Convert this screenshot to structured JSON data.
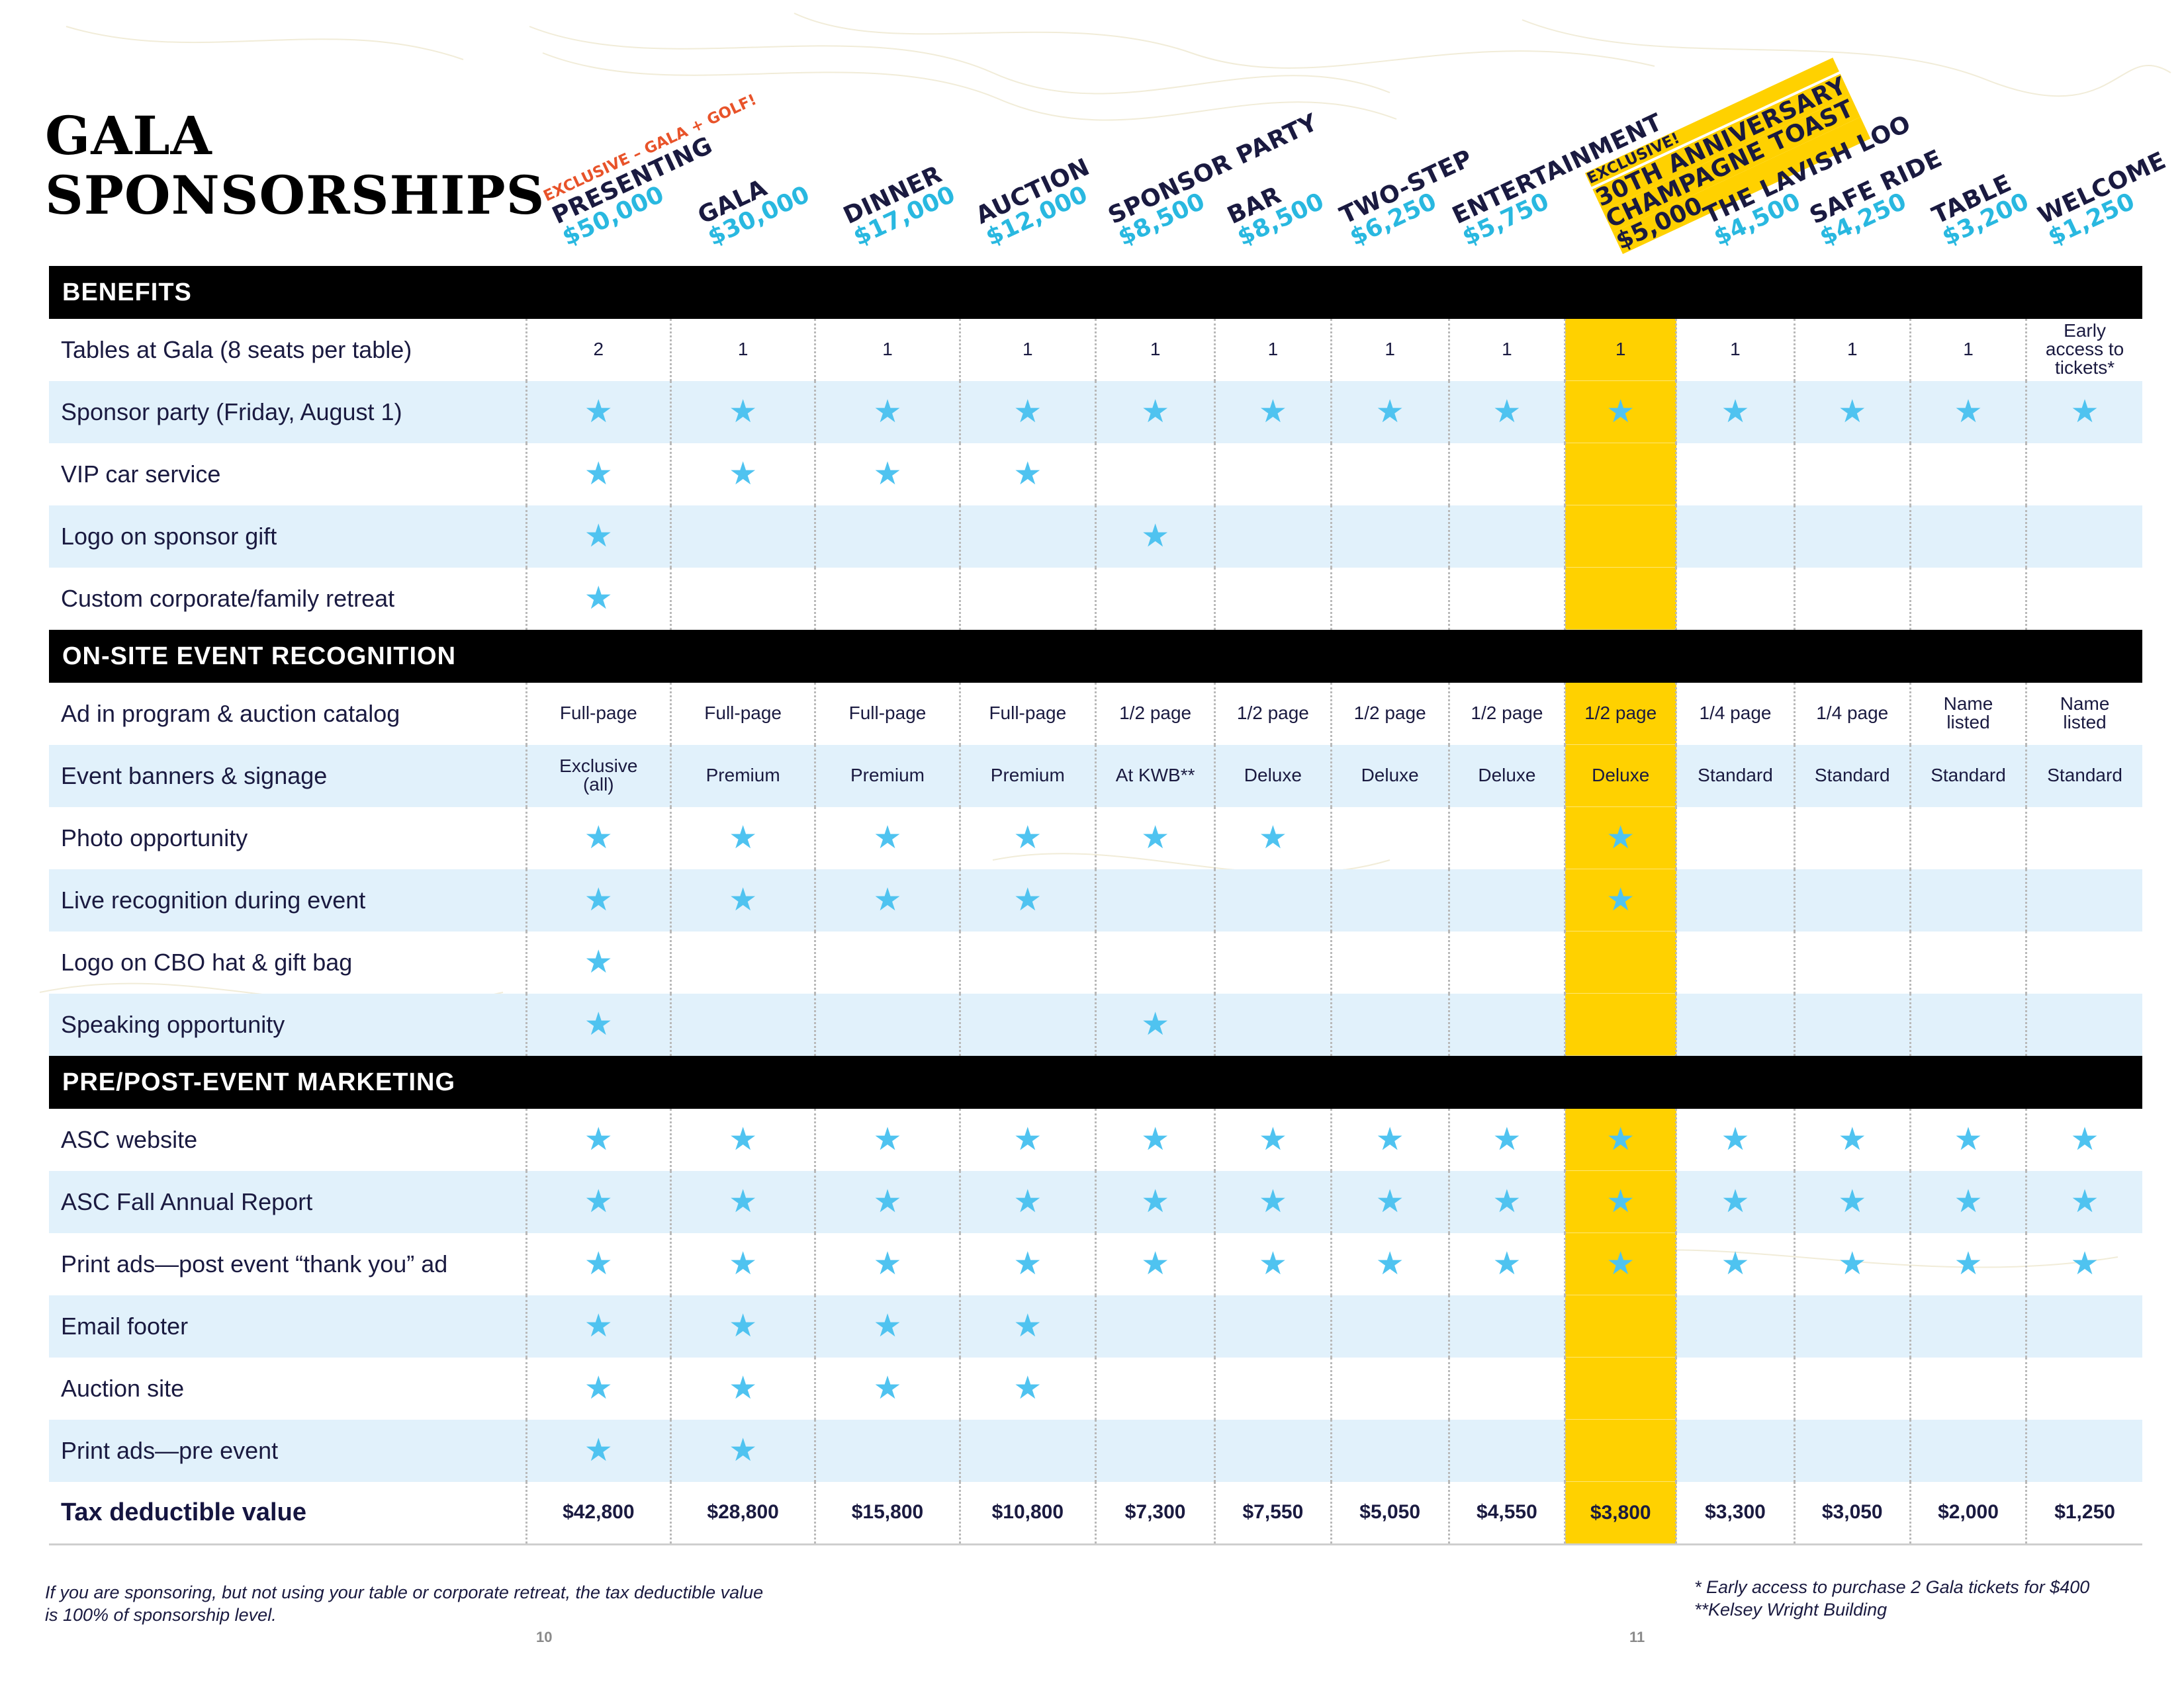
{
  "title": [
    "GALA",
    "SPONSORSHIPS"
  ],
  "columns": [
    {
      "note": "EXCLUSIVE – GALA + GOLF!",
      "name": "PRESENTING",
      "price": "$50,000"
    },
    {
      "name": "GALA",
      "price": "$30,000"
    },
    {
      "name": "DINNER",
      "price": "$17,000"
    },
    {
      "name": "AUCTION",
      "price": "$12,000"
    },
    {
      "name": "SPONSOR PARTY",
      "price": "$8,500"
    },
    {
      "name": "BAR",
      "price": "$8,500"
    },
    {
      "name": "TWO-STEP",
      "price": "$6,250"
    },
    {
      "name": "ENTERTAINMENT",
      "price": "$5,750"
    },
    {
      "note": "EXCLUSIVE!",
      "name": "30TH ANNIVERSARY",
      "name2": "CHAMPAGNE TOAST",
      "price": "$5,000",
      "highlight": true
    },
    {
      "name": "THE LAVISH LOO",
      "price": "$4,500"
    },
    {
      "name": "SAFE RIDE",
      "price": "$4,250"
    },
    {
      "name": "TABLE",
      "price": "$3,200"
    },
    {
      "name": "WELCOME",
      "price": "$1,250"
    }
  ],
  "sections": [
    {
      "title": "BENEFITS",
      "rows": [
        {
          "label": "Tables at Gala (8 seats per table)",
          "cells": [
            "2",
            "1",
            "1",
            "1",
            "1",
            "1",
            "1",
            "1",
            "1",
            "1",
            "1",
            "1",
            "Early access to tickets*"
          ]
        },
        {
          "label": "Sponsor party (Friday, August 1)",
          "cells": [
            "*",
            "*",
            "*",
            "*",
            "*",
            "*",
            "*",
            "*",
            "*",
            "*",
            "*",
            "*",
            "*"
          ]
        },
        {
          "label": "VIP car service",
          "cells": [
            "*",
            "*",
            "*",
            "*",
            "",
            "",
            "",
            "",
            "",
            "",
            "",
            "",
            ""
          ]
        },
        {
          "label": "Logo on sponsor gift",
          "cells": [
            "*",
            "",
            "",
            "",
            "*",
            "",
            "",
            "",
            "",
            "",
            "",
            "",
            ""
          ]
        },
        {
          "label": "Custom corporate/family retreat",
          "cells": [
            "*",
            "",
            "",
            "",
            "",
            "",
            "",
            "",
            "",
            "",
            "",
            "",
            ""
          ]
        }
      ]
    },
    {
      "title": "ON-SITE EVENT RECOGNITION",
      "rows": [
        {
          "label": "Ad in program & auction catalog",
          "cells": [
            "Full-page",
            "Full-page",
            "Full-page",
            "Full-page",
            "1/2 page",
            "1/2 page",
            "1/2 page",
            "1/2 page",
            "1/2 page",
            "1/4 page",
            "1/4 page",
            "Name listed",
            "Name listed"
          ]
        },
        {
          "label": "Event banners & signage",
          "cells": [
            "Exclusive (all)",
            "Premium",
            "Premium",
            "Premium",
            "At KWB**",
            "Deluxe",
            "Deluxe",
            "Deluxe",
            "Deluxe",
            "Standard",
            "Standard",
            "Standard",
            "Standard"
          ]
        },
        {
          "label": "Photo opportunity",
          "cells": [
            "*",
            "*",
            "*",
            "*",
            "*",
            "*",
            "",
            "",
            "*",
            "",
            "",
            "",
            ""
          ]
        },
        {
          "label": "Live recognition during event",
          "cells": [
            "*",
            "*",
            "*",
            "*",
            "",
            "",
            "",
            "",
            "*",
            "",
            "",
            "",
            ""
          ]
        },
        {
          "label": "Logo on CBO hat & gift bag",
          "cells": [
            "*",
            "",
            "",
            "",
            "",
            "",
            "",
            "",
            "",
            "",
            "",
            "",
            ""
          ]
        },
        {
          "label": "Speaking opportunity",
          "cells": [
            "*",
            "",
            "",
            "",
            "*",
            "",
            "",
            "",
            "",
            "",
            "",
            "",
            ""
          ]
        }
      ]
    },
    {
      "title": "PRE/POST-EVENT MARKETING",
      "rows": [
        {
          "label": "ASC website",
          "cells": [
            "*",
            "*",
            "*",
            "*",
            "*",
            "*",
            "*",
            "*",
            "*",
            "*",
            "*",
            "*",
            "*"
          ]
        },
        {
          "label": "ASC Fall Annual Report",
          "cells": [
            "*",
            "*",
            "*",
            "*",
            "*",
            "*",
            "*",
            "*",
            "*",
            "*",
            "*",
            "*",
            "*"
          ]
        },
        {
          "label": "Print ads—post event “thank you” ad",
          "cells": [
            "*",
            "*",
            "*",
            "*",
            "*",
            "*",
            "*",
            "*",
            "*",
            "*",
            "*",
            "*",
            "*"
          ]
        },
        {
          "label": "Email footer",
          "cells": [
            "*",
            "*",
            "*",
            "*",
            "",
            "",
            "",
            "",
            "",
            "",
            "",
            "",
            ""
          ]
        },
        {
          "label": "Auction site",
          "cells": [
            "*",
            "*",
            "*",
            "*",
            "",
            "",
            "",
            "",
            "",
            "",
            "",
            "",
            ""
          ]
        },
        {
          "label": "Print ads—pre event",
          "cells": [
            "*",
            "*",
            "",
            "",
            "",
            "",
            "",
            "",
            "",
            "",
            "",
            "",
            ""
          ]
        }
      ]
    }
  ],
  "tax_row": {
    "label": "Tax deductible value",
    "cells": [
      "$42,800",
      "$28,800",
      "$15,800",
      "$10,800",
      "$7,300",
      "$7,550",
      "$5,050",
      "$4,550",
      "$3,800",
      "$3,300",
      "$3,050",
      "$2,000",
      "$1,250"
    ]
  },
  "footnotes": {
    "left": [
      "If you are sponsoring, but not using your table or corporate retreat, the tax deductible value",
      "is 100% of sponsorship level."
    ],
    "right": [
      "* Early access to purchase 2 Gala tickets for $400",
      "**Kelsey Wright Building"
    ]
  },
  "page_numbers": [
    "10",
    "11"
  ],
  "colors": {
    "highlight": "#ffd100",
    "star": "#4fc3f0",
    "price": "#29b8e0",
    "note": "#e8532a",
    "alt_row": "#e1f1fb",
    "section_bg": "#000000"
  },
  "icons": {
    "benefit_mark": "star-icon"
  }
}
